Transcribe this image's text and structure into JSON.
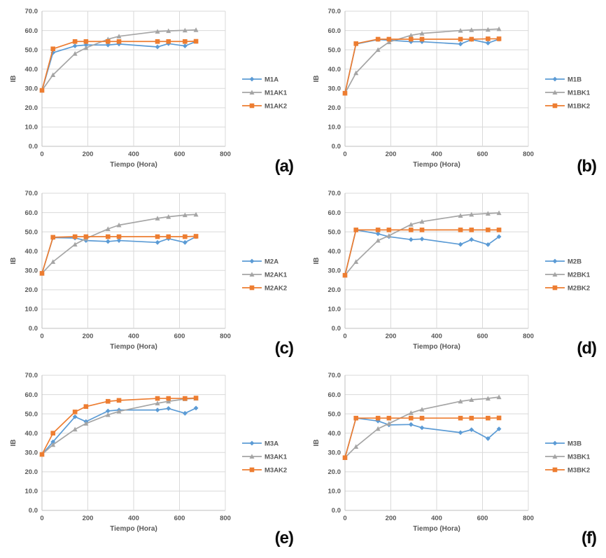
{
  "figure": {
    "background": "#ffffff",
    "colors": {
      "blue": "#5B9BD5",
      "gray": "#A5A5A5",
      "orange": "#ED7D31",
      "gridline": "#D9D9D9",
      "axis_line": "#BFBFBF",
      "text": "#595959",
      "panel_letter": "#0a0a0a"
    }
  },
  "chart_data": [
    {
      "type": "line",
      "panel_label": "(a)",
      "xlabel": "Tiempo (Hora)",
      "ylabel": "IB",
      "xlim": [
        0,
        800
      ],
      "ylim": [
        0,
        70
      ],
      "x_ticks": [
        0,
        200,
        400,
        600,
        800
      ],
      "y_tick_step": 10,
      "grid": true,
      "legend_position": "right",
      "x": [
        0,
        48,
        144,
        192,
        288,
        336,
        504,
        552,
        624,
        672
      ],
      "series": [
        {
          "name": "M1A",
          "color": "blue",
          "marker": "diamond",
          "values": [
            29.0,
            48.5,
            52.0,
            52.5,
            52.5,
            53.0,
            51.5,
            53.2,
            52.0,
            54.3
          ]
        },
        {
          "name": "M1AK1",
          "color": "gray",
          "marker": "triangle",
          "values": [
            29.0,
            37.0,
            48.0,
            51.0,
            55.5,
            57.0,
            59.5,
            59.8,
            60.1,
            60.3
          ]
        },
        {
          "name": "M1AK2",
          "color": "orange",
          "marker": "square",
          "values": [
            29.0,
            50.5,
            54.3,
            54.3,
            54.3,
            54.3,
            54.3,
            54.3,
            54.3,
            54.4
          ]
        }
      ]
    },
    {
      "type": "line",
      "panel_label": "(b)",
      "xlabel": "Tiempo (Hora)",
      "ylabel": "IB",
      "xlim": [
        0,
        800
      ],
      "ylim": [
        0,
        70
      ],
      "x_ticks": [
        0,
        200,
        400,
        600,
        800
      ],
      "y_tick_step": 10,
      "grid": true,
      "legend_position": "right",
      "x": [
        0,
        48,
        144,
        192,
        288,
        336,
        504,
        552,
        624,
        672
      ],
      "series": [
        {
          "name": "M1B",
          "color": "blue",
          "marker": "diamond",
          "values": [
            27.5,
            53.0,
            55.3,
            55.0,
            54.2,
            54.2,
            53.0,
            55.3,
            53.5,
            55.5
          ]
        },
        {
          "name": "M1BK1",
          "color": "gray",
          "marker": "triangle",
          "values": [
            27.5,
            38.0,
            50.0,
            54.0,
            57.5,
            58.5,
            60.0,
            60.3,
            60.5,
            60.8
          ]
        },
        {
          "name": "M1BK2",
          "color": "orange",
          "marker": "square",
          "values": [
            27.5,
            53.2,
            55.5,
            55.5,
            55.5,
            55.5,
            55.5,
            55.5,
            55.7,
            55.7
          ]
        }
      ]
    },
    {
      "type": "line",
      "panel_label": "(c)",
      "xlabel": "Tiempo (Hora)",
      "ylabel": "IB",
      "xlim": [
        0,
        800
      ],
      "ylim": [
        0,
        70
      ],
      "x_ticks": [
        0,
        200,
        400,
        600,
        800
      ],
      "y_tick_step": 10,
      "grid": true,
      "legend_position": "right",
      "x": [
        0,
        48,
        144,
        192,
        288,
        336,
        504,
        552,
        624,
        672
      ],
      "series": [
        {
          "name": "M2A",
          "color": "blue",
          "marker": "diamond",
          "values": [
            28.5,
            47.0,
            46.8,
            45.5,
            45.0,
            45.5,
            44.5,
            46.5,
            44.5,
            47.5
          ]
        },
        {
          "name": "M2AK1",
          "color": "gray",
          "marker": "triangle",
          "values": [
            28.5,
            34.5,
            43.5,
            46.5,
            51.5,
            53.5,
            57.0,
            57.8,
            58.7,
            59.0
          ]
        },
        {
          "name": "M2AK2",
          "color": "orange",
          "marker": "square",
          "values": [
            28.5,
            47.2,
            47.5,
            47.5,
            47.5,
            47.5,
            47.5,
            47.5,
            47.5,
            47.7
          ]
        }
      ]
    },
    {
      "type": "line",
      "panel_label": "(d)",
      "xlabel": "Tiempo (Hora)",
      "ylabel": "IB",
      "xlim": [
        0,
        800
      ],
      "ylim": [
        0,
        70
      ],
      "x_ticks": [
        0,
        200,
        400,
        600,
        800
      ],
      "y_tick_step": 10,
      "grid": true,
      "legend_position": "right",
      "x": [
        0,
        48,
        144,
        192,
        288,
        336,
        504,
        552,
        624,
        672
      ],
      "series": [
        {
          "name": "M2B",
          "color": "blue",
          "marker": "diamond",
          "values": [
            27.5,
            51.0,
            49.0,
            47.5,
            46.0,
            46.3,
            43.5,
            46.0,
            43.4,
            47.5
          ]
        },
        {
          "name": "M2BK1",
          "color": "gray",
          "marker": "triangle",
          "values": [
            27.5,
            34.5,
            45.5,
            48.0,
            53.8,
            55.3,
            58.4,
            59.0,
            59.5,
            59.8
          ]
        },
        {
          "name": "M2BK2",
          "color": "orange",
          "marker": "square",
          "values": [
            27.5,
            51.0,
            51.0,
            51.0,
            51.0,
            51.0,
            51.0,
            51.0,
            51.0,
            51.0
          ]
        }
      ]
    },
    {
      "type": "line",
      "panel_label": "(e)",
      "xlabel": "Tiempo (Hora)",
      "ylabel": "IB",
      "xlim": [
        0,
        800
      ],
      "ylim": [
        0,
        70
      ],
      "x_ticks": [
        0,
        200,
        400,
        600,
        800
      ],
      "y_tick_step": 10,
      "grid": true,
      "legend_position": "right",
      "x": [
        0,
        48,
        144,
        192,
        288,
        336,
        504,
        552,
        624,
        672
      ],
      "series": [
        {
          "name": "M3A",
          "color": "blue",
          "marker": "diamond",
          "values": [
            29.0,
            35.5,
            48.5,
            46.0,
            51.5,
            52.0,
            52.0,
            52.8,
            50.3,
            53.0
          ]
        },
        {
          "name": "M3AK1",
          "color": "gray",
          "marker": "triangle",
          "values": [
            29.0,
            34.0,
            42.0,
            45.0,
            49.5,
            51.3,
            55.5,
            56.5,
            57.7,
            58.0
          ]
        },
        {
          "name": "M3AK2",
          "color": "orange",
          "marker": "square",
          "values": [
            29.0,
            40.0,
            51.0,
            53.8,
            56.5,
            57.0,
            58.0,
            58.0,
            58.0,
            58.2
          ]
        }
      ]
    },
    {
      "type": "line",
      "panel_label": "(f)",
      "xlabel": "Tiempo (Hora)",
      "ylabel": "IB",
      "xlim": [
        0,
        800
      ],
      "ylim": [
        0,
        70
      ],
      "x_ticks": [
        0,
        200,
        400,
        600,
        800
      ],
      "y_tick_step": 10,
      "grid": true,
      "legend_position": "right",
      "x": [
        0,
        48,
        144,
        192,
        288,
        336,
        504,
        552,
        624,
        672
      ],
      "series": [
        {
          "name": "M3B",
          "color": "blue",
          "marker": "diamond",
          "values": [
            27.3,
            47.8,
            46.3,
            44.3,
            44.5,
            42.8,
            40.3,
            41.8,
            37.2,
            42.2
          ]
        },
        {
          "name": "M3BK1",
          "color": "gray",
          "marker": "triangle",
          "values": [
            27.3,
            33.0,
            42.3,
            45.0,
            50.5,
            52.3,
            56.5,
            57.3,
            58.0,
            58.7
          ]
        },
        {
          "name": "M3BK2",
          "color": "orange",
          "marker": "square",
          "values": [
            27.3,
            47.8,
            47.8,
            47.8,
            47.8,
            47.8,
            47.8,
            47.8,
            47.8,
            47.9
          ]
        }
      ]
    }
  ]
}
